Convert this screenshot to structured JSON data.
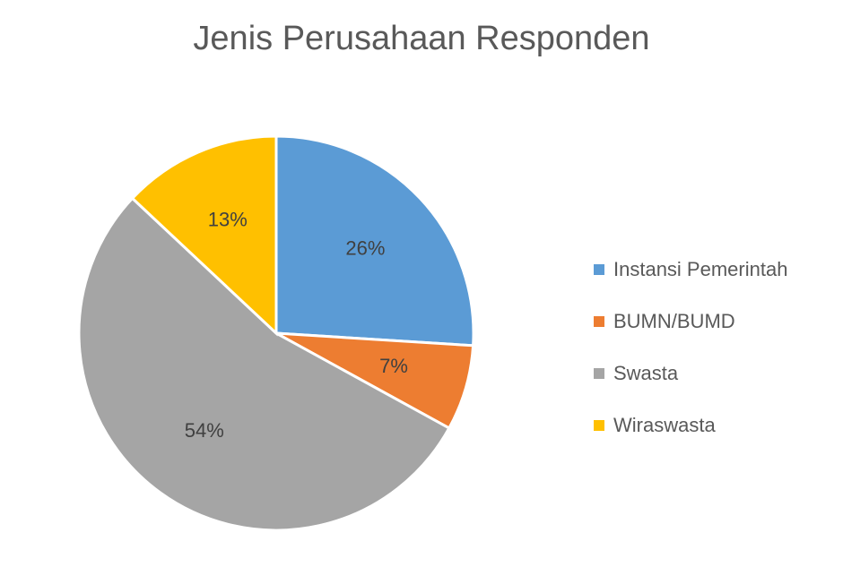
{
  "chart_data": {
    "type": "pie",
    "title": "Jenis Perusahaan Responden",
    "categories": [
      "Instansi Pemerintah",
      "BUMN/BUMD",
      "Swasta",
      "Wiraswasta"
    ],
    "values": [
      26,
      7,
      54,
      13
    ],
    "data_labels": [
      "26%",
      "7%",
      "54%",
      "13%"
    ],
    "colors": [
      "#5B9BD5",
      "#ED7D31",
      "#A5A5A5",
      "#FFC000"
    ],
    "legend_position": "right"
  }
}
